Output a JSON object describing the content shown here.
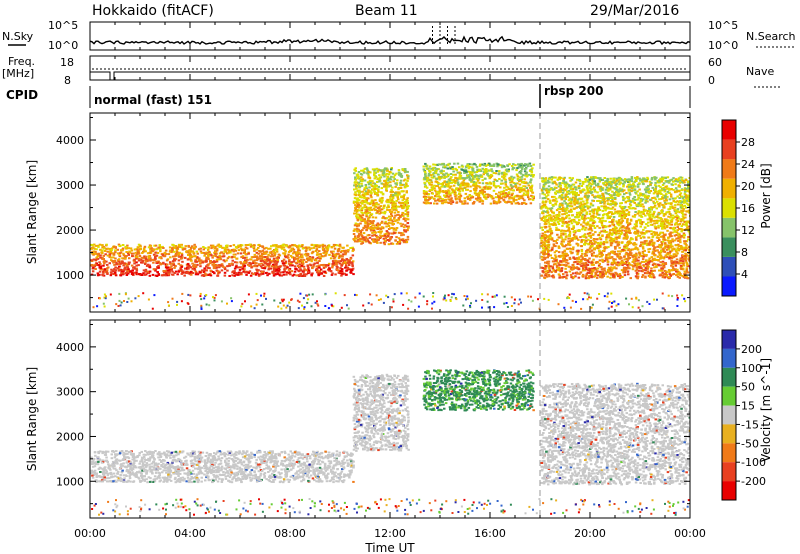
{
  "header": {
    "station": "Hokkaido (fitACF)",
    "beam": "Beam 11",
    "date": "29/Mar/2016"
  },
  "top_panels": {
    "nsky_label": "N.Sky",
    "nsearch_label": "N.Search",
    "nsky_ticks": [
      "10^5",
      "10^0"
    ],
    "nsearch_ticks": [
      "10^5",
      "10^0"
    ],
    "freq_label": "Freq.",
    "freq_unit": "[MHz]",
    "freq_ticks": [
      "18",
      "8"
    ],
    "nave_label": "Nave",
    "nave_ticks": [
      "60",
      "0"
    ],
    "cpid_label": "CPID",
    "cpid_programs": [
      {
        "name": "normal (fast) 151",
        "start_hour": 0.0,
        "end_hour": 18.0
      },
      {
        "name": "rbsp 200",
        "start_hour": 18.0,
        "end_hour": 24.0
      }
    ]
  },
  "x_axis": {
    "label": "Time UT",
    "ticks": [
      "00:00",
      "04:00",
      "08:00",
      "12:00",
      "16:00",
      "20:00",
      "00:00"
    ],
    "range_hours": [
      0,
      24
    ]
  },
  "chart_data": [
    {
      "type": "heatmap",
      "quantity": "Power",
      "ylabel": "Slant Range [km]",
      "yticks": [
        "1000",
        "2000",
        "3000",
        "4000"
      ],
      "ylim": [
        180,
        4600
      ],
      "colorbar_label": "Power [dB]",
      "colorbar_ticks": [
        "4",
        "8",
        "12",
        "16",
        "20",
        "24",
        "28"
      ],
      "colorbar_range": [
        0,
        32
      ],
      "colors": [
        "#0a1aff",
        "#2e4fb8",
        "#3a8f5e",
        "#86c36a",
        "#dbe000",
        "#f0b000",
        "#f07a18",
        "#e84020",
        "#e80000"
      ],
      "echo_bands": [
        {
          "start_hour": 0.0,
          "end_hour": 10.5,
          "range_start_km": 1000,
          "range_end_km": 1700,
          "power_db": 27
        },
        {
          "start_hour": 10.5,
          "end_hour": 12.7,
          "range_start_km": 1700,
          "range_end_km": 3400,
          "power_db": 22
        },
        {
          "start_hour": 13.3,
          "end_hour": 17.7,
          "range_start_km": 2600,
          "range_end_km": 3500,
          "power_db": 20
        },
        {
          "start_hour": 18.0,
          "end_hour": 24.0,
          "range_start_km": 950,
          "range_end_km": 3200,
          "power_db": 22
        }
      ]
    },
    {
      "type": "heatmap",
      "quantity": "Velocity",
      "ylabel": "Slant Range [km]",
      "yticks": [
        "1000",
        "2000",
        "3000",
        "4000"
      ],
      "ylim": [
        180,
        4600
      ],
      "colorbar_label": "Velocity [m s^-1]",
      "colorbar_ticks": [
        "200",
        "100",
        "50",
        "15",
        "-15",
        "-50",
        "-100",
        "-200"
      ],
      "colors": [
        "#2a2aaa",
        "#3366cc",
        "#2f8a55",
        "#66cc33",
        "#c8c8c8",
        "#e8b020",
        "#f07a18",
        "#e84020",
        "#e80000"
      ],
      "echo_bands": [
        {
          "start_hour": 0.0,
          "end_hour": 10.5,
          "range_start_km": 1000,
          "range_end_km": 1700,
          "velocity_ms": 0
        },
        {
          "start_hour": 10.5,
          "end_hour": 12.7,
          "range_start_km": 1700,
          "range_end_km": 3400,
          "velocity_ms": 0
        },
        {
          "start_hour": 13.3,
          "end_hour": 17.7,
          "range_start_km": 2600,
          "range_end_km": 3500,
          "velocity_ms": 40
        },
        {
          "start_hour": 18.0,
          "end_hour": 24.0,
          "range_start_km": 950,
          "range_end_km": 3200,
          "velocity_ms": 0
        }
      ]
    }
  ]
}
